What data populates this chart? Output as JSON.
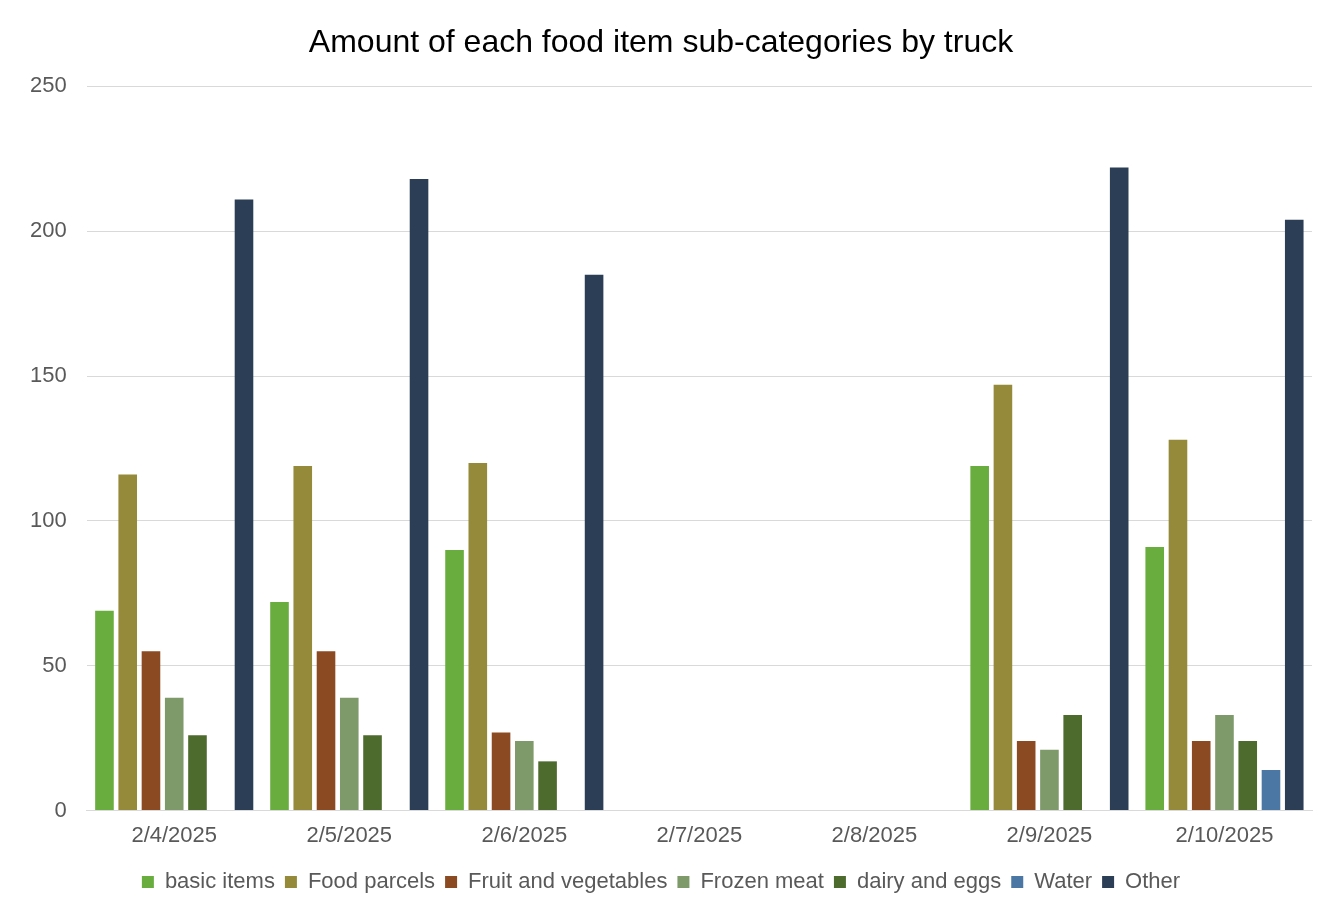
{
  "chart_data": {
    "type": "bar",
    "title": "Amount of each food item sub-categories by truck",
    "categories": [
      "2/4/2025",
      "2/5/2025",
      "2/6/2025",
      "2/7/2025",
      "2/8/2025",
      "2/9/2025",
      "2/10/2025"
    ],
    "series": [
      {
        "name": "basic items",
        "color": "#6aad3f",
        "values": [
          69,
          72,
          90,
          null,
          null,
          119,
          91
        ]
      },
      {
        "name": "Food parcels",
        "color": "#948a3a",
        "values": [
          116,
          119,
          120,
          null,
          null,
          147,
          128
        ]
      },
      {
        "name": "Fruit and vegetables",
        "color": "#8b4a22",
        "values": [
          55,
          55,
          27,
          null,
          null,
          24,
          24
        ]
      },
      {
        "name": "Frozen meat",
        "color": "#7f9a6a",
        "values": [
          39,
          39,
          24,
          null,
          null,
          21,
          33
        ]
      },
      {
        "name": "dairy and eggs",
        "color": "#4e6b2e",
        "values": [
          26,
          26,
          17,
          null,
          null,
          33,
          24
        ]
      },
      {
        "name": "Water",
        "color": "#4a77a3",
        "values": [
          null,
          null,
          null,
          null,
          null,
          null,
          14
        ]
      },
      {
        "name": "Other",
        "color": "#2b3e55",
        "values": [
          211,
          218,
          185,
          null,
          null,
          222,
          204
        ]
      }
    ],
    "ylim": [
      0,
      250
    ],
    "yticks": [
      0,
      50,
      100,
      150,
      200,
      250
    ],
    "grid": "y",
    "legend": "bottom"
  }
}
